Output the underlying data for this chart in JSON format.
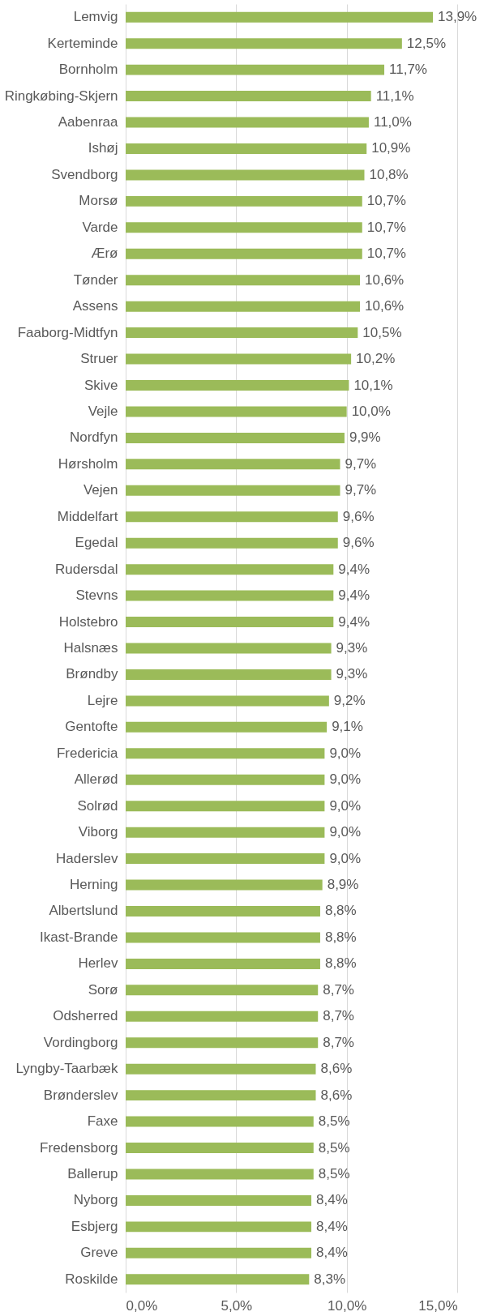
{
  "chart_data": {
    "type": "bar",
    "orientation": "horizontal",
    "categories": [
      "Lemvig",
      "Kerteminde",
      "Bornholm",
      "Ringkøbing-Skjern",
      "Aabenraa",
      "Ishøj",
      "Svendborg",
      "Morsø",
      "Varde",
      "Ærø",
      "Tønder",
      "Assens",
      "Faaborg-Midtfyn",
      "Struer",
      "Skive",
      "Vejle",
      "Nordfyn",
      "Hørsholm",
      "Vejen",
      "Middelfart",
      "Egedal",
      "Rudersdal",
      "Stevns",
      "Holstebro",
      "Halsnæs",
      "Brøndby",
      "Lejre",
      "Gentofte",
      "Fredericia",
      "Allerød",
      "Solrød",
      "Viborg",
      "Haderslev",
      "Herning",
      "Albertslund",
      "Ikast-Brande",
      "Herlev",
      "Sorø",
      "Odsherred",
      "Vordingborg",
      "Lyngby-Taarbæk",
      "Brønderslev",
      "Faxe",
      "Fredensborg",
      "Ballerup",
      "Nyborg",
      "Esbjerg",
      "Greve",
      "Roskilde"
    ],
    "values": [
      13.9,
      12.5,
      11.7,
      11.1,
      11.0,
      10.9,
      10.8,
      10.7,
      10.7,
      10.7,
      10.6,
      10.6,
      10.5,
      10.2,
      10.1,
      10.0,
      9.9,
      9.7,
      9.7,
      9.6,
      9.6,
      9.4,
      9.4,
      9.4,
      9.3,
      9.3,
      9.2,
      9.1,
      9.0,
      9.0,
      9.0,
      9.0,
      9.0,
      8.9,
      8.8,
      8.8,
      8.8,
      8.7,
      8.7,
      8.7,
      8.6,
      8.6,
      8.5,
      8.5,
      8.5,
      8.4,
      8.4,
      8.4,
      8.3
    ],
    "value_labels": [
      "13,9%",
      "12,5%",
      "11,7%",
      "11,1%",
      "11,0%",
      "10,9%",
      "10,8%",
      "10,7%",
      "10,7%",
      "10,7%",
      "10,6%",
      "10,6%",
      "10,5%",
      "10,2%",
      "10,1%",
      "10,0%",
      "9,9%",
      "9,7%",
      "9,7%",
      "9,6%",
      "9,6%",
      "9,4%",
      "9,4%",
      "9,4%",
      "9,3%",
      "9,3%",
      "9,2%",
      "9,1%",
      "9,0%",
      "9,0%",
      "9,0%",
      "9,0%",
      "9,0%",
      "8,9%",
      "8,8%",
      "8,8%",
      "8,8%",
      "8,7%",
      "8,7%",
      "8,7%",
      "8,6%",
      "8,6%",
      "8,5%",
      "8,5%",
      "8,5%",
      "8,4%",
      "8,4%",
      "8,4%",
      "8,3%"
    ],
    "color": "#9bbb59",
    "xlim": [
      0,
      15
    ],
    "xticks": [
      {
        "value": 0,
        "label": "0,0%"
      },
      {
        "value": 5,
        "label": "5,0%"
      },
      {
        "value": 10,
        "label": "10,0%"
      },
      {
        "value": 15,
        "label": "15,0%"
      }
    ],
    "grid": "x"
  }
}
